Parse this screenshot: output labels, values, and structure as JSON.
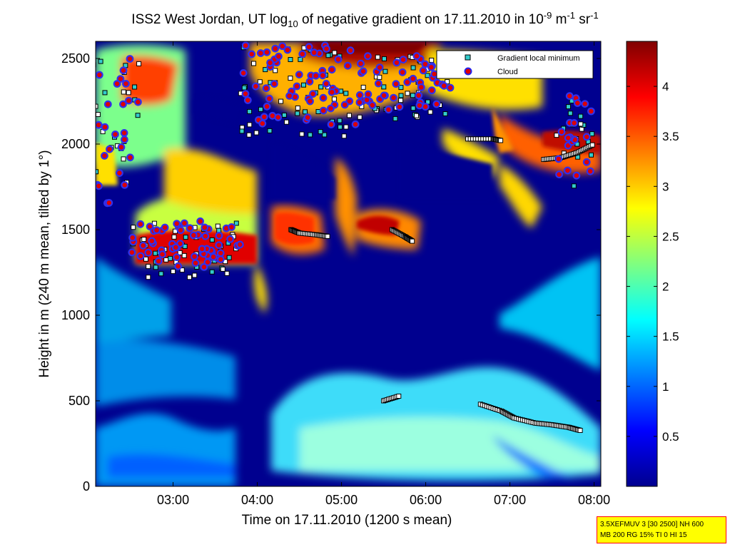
{
  "chart_data": {
    "type": "heatmap",
    "title_parts": {
      "a": "ISS2 West Jordan, UT log",
      "b": "10",
      "c": " of negative gradient on 17.11.2010 in 10",
      "d": "-9",
      "e": " m",
      "f": "-1",
      "g": " sr",
      "h": "-1"
    },
    "xlabel": "Time on 17.11.2010 (1200 s mean)",
    "ylabel": "Height in m (240 m mean, tilted by 1°)",
    "xlim_hours": [
      2.08,
      8.08
    ],
    "ylim": [
      0,
      2600
    ],
    "x_ticks": [
      {
        "value": 3,
        "label": "03:00"
      },
      {
        "value": 4,
        "label": "04:00"
      },
      {
        "value": 5,
        "label": "05:00"
      },
      {
        "value": 6,
        "label": "06:00"
      },
      {
        "value": 7,
        "label": "07:00"
      },
      {
        "value": 8,
        "label": "08:00"
      }
    ],
    "y_ticks": [
      {
        "value": 0,
        "label": "0"
      },
      {
        "value": 500,
        "label": "500"
      },
      {
        "value": 1000,
        "label": "1000"
      },
      {
        "value": 1500,
        "label": "1500"
      },
      {
        "value": 2000,
        "label": "2000"
      },
      {
        "value": 2500,
        "label": "2500"
      }
    ],
    "colorbar": {
      "range": [
        0,
        4.45
      ],
      "colormap": "jet",
      "ticks": [
        {
          "value": 0.5,
          "label": "0.5"
        },
        {
          "value": 1,
          "label": "1"
        },
        {
          "value": 1.5,
          "label": "1.5"
        },
        {
          "value": 2,
          "label": "2"
        },
        {
          "value": 2.5,
          "label": "2.5"
        },
        {
          "value": 3,
          "label": "3"
        },
        {
          "value": 3.5,
          "label": "3.5"
        },
        {
          "value": 4,
          "label": "4"
        }
      ]
    },
    "legend": {
      "placement": "top-right",
      "entries": [
        {
          "label": "Gradient local minimum",
          "marker": "square",
          "color": "#33cccc"
        },
        {
          "label": "Cloud",
          "marker": "circle",
          "color": "#dd0000",
          "edge": "#2222ee"
        }
      ]
    },
    "cloud_bands": [
      {
        "t0": 2.5,
        "t1": 3.8,
        "y0": 1280,
        "y1": 1550
      },
      {
        "t0": 2.05,
        "t1": 2.6,
        "y0": 1650,
        "y1": 2500
      },
      {
        "t0": 3.8,
        "t1": 5.2,
        "y0": 2100,
        "y1": 2580
      },
      {
        "t0": 5.2,
        "t1": 6.3,
        "y0": 2200,
        "y1": 2520
      },
      {
        "t0": 7.55,
        "t1": 8.0,
        "y0": 1800,
        "y1": 2300
      }
    ],
    "minimum_traces": [
      {
        "t": [
          6.65,
          6.9,
          7.05,
          7.3,
          7.5,
          7.7,
          7.85
        ],
        "y": [
          480,
          440,
          400,
          370,
          360,
          345,
          325
        ]
      },
      {
        "t": [
          4.4,
          4.5,
          4.7,
          4.85
        ],
        "y": [
          1500,
          1480,
          1470,
          1460
        ]
      },
      {
        "t": [
          5.6,
          5.75,
          5.85
        ],
        "y": [
          1500,
          1460,
          1430
        ]
      },
      {
        "t": [
          5.5,
          5.7
        ],
        "y": [
          500,
          530
        ]
      },
      {
        "t": [
          6.5,
          6.8,
          6.9
        ],
        "y": [
          2030,
          2030,
          2020
        ]
      },
      {
        "t": [
          7.4,
          7.6,
          7.8,
          8.0
        ],
        "y": [
          1910,
          1920,
          1950,
          2000
        ]
      }
    ],
    "scale_bar": {
      "label": "Gradient local minimum"
    }
  },
  "info_box": {
    "line1": "3.5XEFMUV 3 [30 2500] NH 600",
    "line2": "MB 200 RG 15% TI 0 HI 15"
  }
}
